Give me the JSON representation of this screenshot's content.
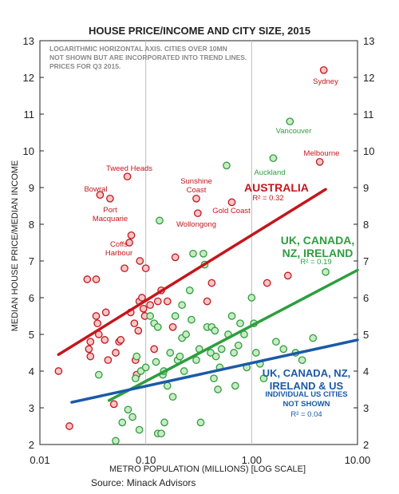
{
  "chart_data": {
    "type": "scatter",
    "title": "HOUSE PRICE/INCOME AND CITY SIZE, 2015",
    "notes": [
      "LOGARITHMIC HORIZONTAL AXIS.  CITIES OVER 10MN",
      "NOT SHOWN BUT ARE INCORPORATED INTO TREND LINES.",
      "PRICES FOR Q3 2015."
    ],
    "xlabel": "METRO POPULATION (MILLIONS) [LOG SCALE]",
    "ylabel": "MEDIAN HOUSE PRICE/MEDIAN INCOME",
    "x_scale": "log",
    "xlim": [
      0.01,
      10
    ],
    "ylim": [
      2,
      13
    ],
    "x_ticks": [
      0.01,
      0.1,
      1,
      10
    ],
    "x_tick_labels": [
      "0.01",
      "0.10",
      "1.00",
      "10.00"
    ],
    "y_ticks": [
      2,
      3,
      4,
      5,
      6,
      7,
      8,
      9,
      10,
      11,
      12,
      13
    ],
    "grid": {
      "vertical": true,
      "horizontal": false
    },
    "source": "Source: Minack Advisors",
    "colors": {
      "australia": "#c4161c",
      "uk_canada_nz_ireland": "#2e9e3f",
      "us": "#1a5aa8"
    },
    "series": [
      {
        "name": "AUSTRALIA",
        "color": "#c4161c",
        "points": [
          [
            0.015,
            4.0
          ],
          [
            0.019,
            2.5
          ],
          [
            0.028,
            6.5
          ],
          [
            0.029,
            4.6
          ],
          [
            0.03,
            4.8
          ],
          [
            0.03,
            4.4
          ],
          [
            0.034,
            6.5
          ],
          [
            0.034,
            5.5
          ],
          [
            0.035,
            5.3
          ],
          [
            0.036,
            5.0
          ],
          [
            0.037,
            8.8
          ],
          [
            0.041,
            4.85
          ],
          [
            0.042,
            5.6
          ],
          [
            0.044,
            4.3
          ],
          [
            0.046,
            8.7
          ],
          [
            0.05,
            3.1
          ],
          [
            0.052,
            4.5
          ],
          [
            0.056,
            4.8
          ],
          [
            0.058,
            4.85
          ],
          [
            0.063,
            6.8
          ],
          [
            0.067,
            9.3
          ],
          [
            0.07,
            7.5
          ],
          [
            0.072,
            5.6
          ],
          [
            0.073,
            7.7
          ],
          [
            0.078,
            5.3
          ],
          [
            0.08,
            4.3
          ],
          [
            0.082,
            3.9
          ],
          [
            0.085,
            5.1
          ],
          [
            0.087,
            5.9
          ],
          [
            0.088,
            7.0
          ],
          [
            0.092,
            6.0
          ],
          [
            0.095,
            5.7
          ],
          [
            0.098,
            5.5
          ],
          [
            0.1,
            6.8
          ],
          [
            0.11,
            5.8
          ],
          [
            0.12,
            4.6
          ],
          [
            0.13,
            5.9
          ],
          [
            0.14,
            6.2
          ],
          [
            0.16,
            5.9
          ],
          [
            0.18,
            5.2
          ],
          [
            0.19,
            7.1
          ],
          [
            0.3,
            8.7
          ],
          [
            0.31,
            8.3
          ],
          [
            0.38,
            5.9
          ],
          [
            0.42,
            6.4
          ],
          [
            0.65,
            8.6
          ],
          [
            1.4,
            6.4
          ],
          [
            2.2,
            6.6
          ],
          [
            4.4,
            9.7
          ],
          [
            4.8,
            12.2
          ]
        ]
      },
      {
        "name": "UK, CANADA, NZ, IRELAND",
        "color": "#2e9e3f",
        "points": [
          [
            0.036,
            3.9
          ],
          [
            0.052,
            2.1
          ],
          [
            0.06,
            2.6
          ],
          [
            0.068,
            2.95
          ],
          [
            0.075,
            2.75
          ],
          [
            0.08,
            3.8
          ],
          [
            0.082,
            4.4
          ],
          [
            0.087,
            2.4
          ],
          [
            0.09,
            4.0
          ],
          [
            0.1,
            4.1
          ],
          [
            0.11,
            5.5
          ],
          [
            0.12,
            5.3
          ],
          [
            0.125,
            4.25
          ],
          [
            0.13,
            2.3
          ],
          [
            0.13,
            5.2
          ],
          [
            0.135,
            8.1
          ],
          [
            0.14,
            2.3
          ],
          [
            0.145,
            3.9
          ],
          [
            0.148,
            4.0
          ],
          [
            0.15,
            2.6
          ],
          [
            0.16,
            3.6
          ],
          [
            0.17,
            4.5
          ],
          [
            0.18,
            3.3
          ],
          [
            0.19,
            5.5
          ],
          [
            0.2,
            4.3
          ],
          [
            0.21,
            4.4
          ],
          [
            0.22,
            4.9
          ],
          [
            0.22,
            5.8
          ],
          [
            0.23,
            4.0
          ],
          [
            0.24,
            5.0
          ],
          [
            0.26,
            6.2
          ],
          [
            0.27,
            5.4
          ],
          [
            0.28,
            7.2
          ],
          [
            0.3,
            4.3
          ],
          [
            0.32,
            4.6
          ],
          [
            0.33,
            2.6
          ],
          [
            0.35,
            7.2
          ],
          [
            0.36,
            6.9
          ],
          [
            0.38,
            5.2
          ],
          [
            0.41,
            4.5
          ],
          [
            0.42,
            5.2
          ],
          [
            0.44,
            3.8
          ],
          [
            0.45,
            5.1
          ],
          [
            0.46,
            4.4
          ],
          [
            0.48,
            3.5
          ],
          [
            0.5,
            4.1
          ],
          [
            0.52,
            4.6
          ],
          [
            0.58,
            9.6
          ],
          [
            0.6,
            5.0
          ],
          [
            0.65,
            5.5
          ],
          [
            0.68,
            4.5
          ],
          [
            0.7,
            3.6
          ],
          [
            0.75,
            4.7
          ],
          [
            0.78,
            5.3
          ],
          [
            0.85,
            5.0
          ],
          [
            0.9,
            4.1
          ],
          [
            1.0,
            6.0
          ],
          [
            1.05,
            5.3
          ],
          [
            1.1,
            4.5
          ],
          [
            1.2,
            4.2
          ],
          [
            1.3,
            3.8
          ],
          [
            1.6,
            9.8
          ],
          [
            1.7,
            4.8
          ],
          [
            2.0,
            4.6
          ],
          [
            2.3,
            10.8
          ],
          [
            2.6,
            4.5
          ],
          [
            3.0,
            4.3
          ],
          [
            3.8,
            4.9
          ],
          [
            5.0,
            6.7
          ]
        ]
      }
    ],
    "trend_lines": [
      {
        "name": "AUSTRALIA",
        "color": "#c4161c",
        "r2": "R² = 0.32",
        "from": [
          0.015,
          4.45
        ],
        "to": [
          5.0,
          8.95
        ]
      },
      {
        "name": "UK, CANADA, NZ, IRELAND",
        "color": "#2e9e3f",
        "r2": "R² = 0.19",
        "from": [
          0.045,
          3.2
        ],
        "to": [
          10.0,
          6.75
        ]
      },
      {
        "name": "UK, CANADA, NZ, IRELAND & US",
        "color": "#1a5aa8",
        "r2": "R² = 0.04",
        "from": [
          0.02,
          3.15
        ],
        "to": [
          10.0,
          4.85
        ]
      }
    ],
    "series_labels": [
      {
        "lines": [
          "AUSTRALIA"
        ],
        "color": "#c4161c"
      },
      {
        "lines": [
          "UK, CANADA,",
          "NZ, IRELAND"
        ],
        "color": "#2e9e3f"
      },
      {
        "lines": [
          "UK, CANADA, NZ,",
          "IRELAND & US"
        ],
        "color": "#1a5aa8"
      }
    ],
    "us_note": [
      "INDIVIDUAL US CITIES",
      "NOT SHOWN"
    ],
    "point_labels": [
      {
        "text": [
          "Sydney"
        ],
        "color": "#c4161c"
      },
      {
        "text": [
          "Vancouver"
        ],
        "color": "#2e9e3f"
      },
      {
        "text": [
          "Melbourne"
        ],
        "color": "#c4161c"
      },
      {
        "text": [
          "Auckland"
        ],
        "color": "#2e9e3f"
      },
      {
        "text": [
          "Tweed Heads"
        ],
        "color": "#c4161c"
      },
      {
        "text": [
          "Sunshine",
          "Coast"
        ],
        "color": "#c4161c"
      },
      {
        "text": [
          "Bowral"
        ],
        "color": "#c4161c"
      },
      {
        "text": [
          "Port",
          "Macquarie"
        ],
        "color": "#c4161c"
      },
      {
        "text": [
          "Gold Coast"
        ],
        "color": "#c4161c"
      },
      {
        "text": [
          "Wollongong"
        ],
        "color": "#c4161c"
      },
      {
        "text": [
          "Coffs",
          "Harbour"
        ],
        "color": "#c4161c"
      }
    ]
  }
}
